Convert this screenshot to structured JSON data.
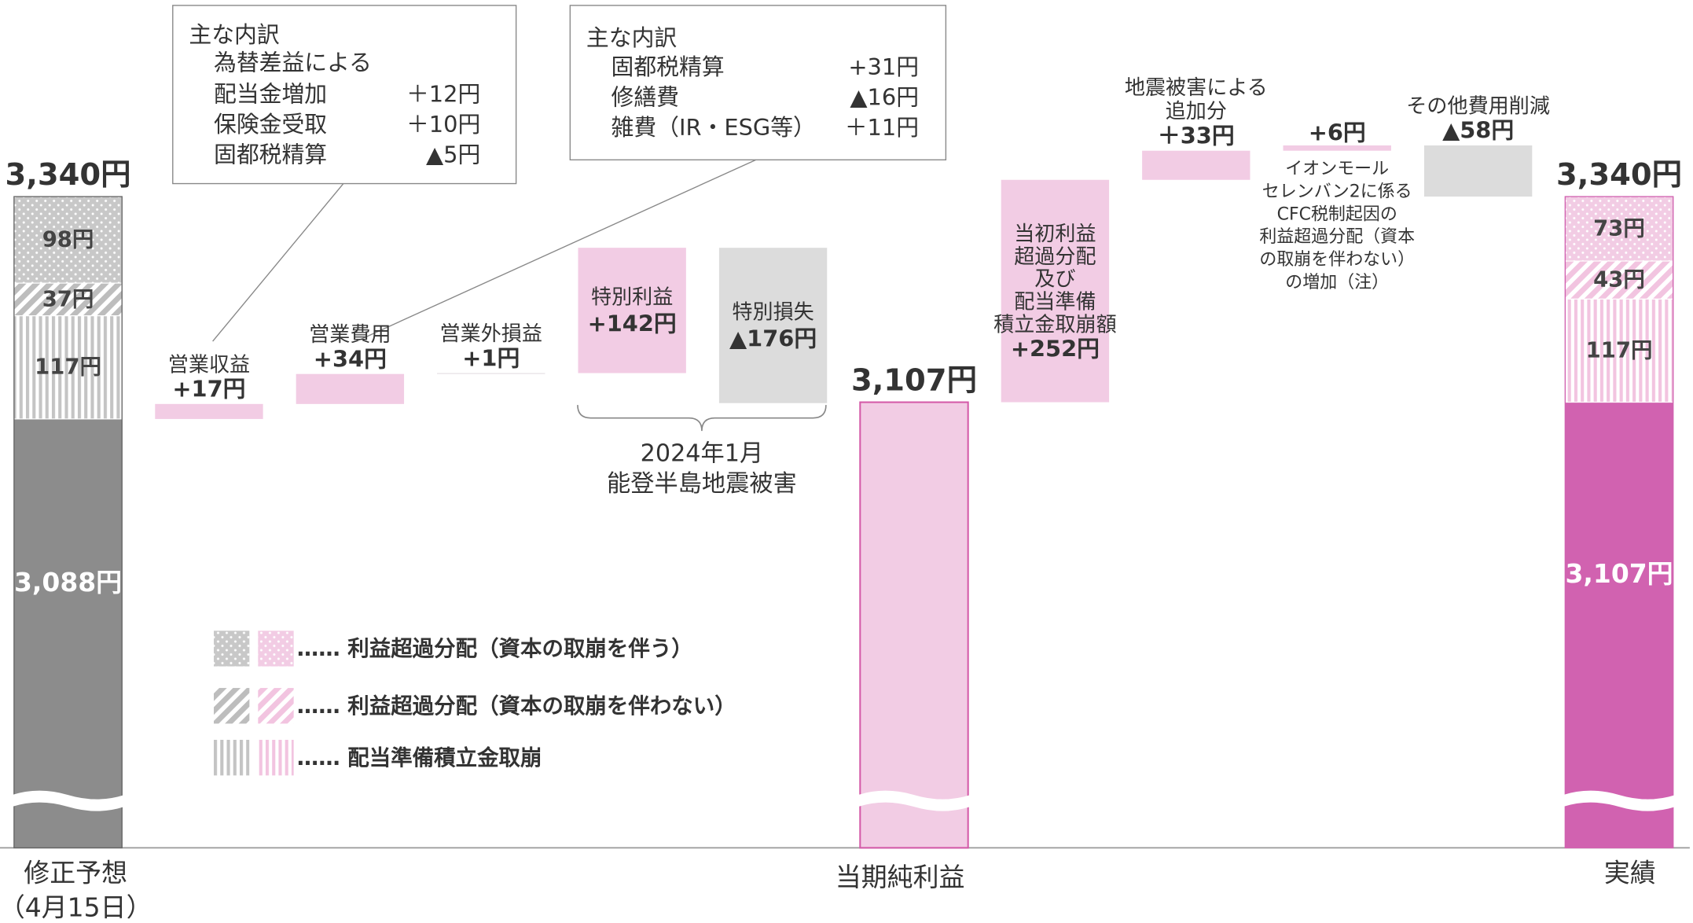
{
  "chart_data": {
    "type": "waterfall",
    "ylim": [
      2650,
      3500
    ],
    "bars": [
      {
        "kind": "total",
        "category": [
          "修正予想",
          "（4月15日）"
        ],
        "value": 3340,
        "value_label": "3,340円",
        "segments": [
          {
            "value": 3088,
            "label": "3,088円",
            "pattern": "solid",
            "color": "#8c8c8c"
          },
          {
            "value": 117,
            "label": "117円",
            "pattern": "stripes",
            "color": "#c4c4c4"
          },
          {
            "value": 37,
            "label": "37円",
            "pattern": "hatch",
            "color": "#bdbdbd"
          },
          {
            "value": 98,
            "label": "98円",
            "pattern": "dots",
            "color": "#c8c8c8"
          }
        ]
      },
      {
        "kind": "step",
        "name": [
          "営業収益"
        ],
        "value": 17,
        "value_label": "+17円",
        "color": "#f2cce4"
      },
      {
        "kind": "step",
        "name": [
          "営業費用"
        ],
        "value": 34,
        "value_label": "+34円",
        "color": "#f2cce4"
      },
      {
        "kind": "step",
        "name": [
          "営業外損益"
        ],
        "value": 1,
        "value_label": "+1円",
        "color": "#e4dde2"
      },
      {
        "kind": "step",
        "name": [
          "特別利益"
        ],
        "value": 142,
        "value_label": "+142円",
        "color": "#f2cce4"
      },
      {
        "kind": "step",
        "name": [
          "特別損失"
        ],
        "value": -176,
        "value_label": "▲176円",
        "color": "#dcdcdc"
      },
      {
        "kind": "total",
        "category": [
          "当期純利益"
        ],
        "value": 3107,
        "value_label": "3,107円",
        "color": "#f2cce4",
        "edge_color": "#d45aa8"
      },
      {
        "kind": "step",
        "name": [
          "当初利益",
          "超過分配",
          "及び",
          "配当準備",
          "積立金取崩額"
        ],
        "value": 252,
        "value_label": "+252円",
        "color": "#f2cce4"
      },
      {
        "kind": "step",
        "name": [
          "地震被害による",
          "追加分"
        ],
        "value": 33,
        "value_label": "＋33円",
        "color": "#f2cce4"
      },
      {
        "kind": "step",
        "name": [
          "イオンモール",
          "セレンバン2に係る",
          "CFC税制起因の",
          "利益超過分配（資本",
          "の取崩を伴わない）",
          "の増加（注）"
        ],
        "value": 6,
        "value_label": "+6円",
        "color": "#f2cce4"
      },
      {
        "kind": "step",
        "name": [
          "その他費用削減"
        ],
        "value": -58,
        "value_label": "▲58円",
        "color": "#dcdcdc"
      },
      {
        "kind": "total",
        "category": [
          "実績"
        ],
        "value": 3340,
        "value_label": "3,340円",
        "segments": [
          {
            "value": 3107,
            "label": "3,107円",
            "pattern": "solid",
            "color": "#d162b0"
          },
          {
            "value": 117,
            "label": "117円",
            "pattern": "stripes",
            "color": "#f2c4e0"
          },
          {
            "value": 43,
            "label": "43円",
            "pattern": "hatch",
            "color": "#f2c4e0"
          },
          {
            "value": 73,
            "label": "73円",
            "pattern": "dots",
            "color": "#f2cce4"
          }
        ]
      }
    ],
    "callouts": [
      {
        "title": "主な内訳",
        "intro": "為替差益による",
        "rows": [
          [
            "配当金増加",
            "＋12円"
          ],
          [
            "保険金受取",
            "＋10円"
          ],
          [
            "固都税精算",
            "▲5円"
          ]
        ]
      },
      {
        "title": "主な内訳",
        "rows": [
          [
            "固都税精算",
            "+31円"
          ],
          [
            "修繕費",
            "▲16円"
          ],
          [
            "雑費（IR・ESG等）",
            "＋11円"
          ]
        ]
      }
    ],
    "brace_label": [
      "2024年1月",
      "能登半島地震被害"
    ],
    "legend": [
      {
        "label": "…… 利益超過分配（資本の取崩を伴う）",
        "pattern": "dots",
        "colors": [
          "#c8c8c8",
          "#f2cce4"
        ]
      },
      {
        "label": "…… 利益超過分配（資本の取崩を伴わない）",
        "pattern": "hatch",
        "colors": [
          "#bdbdbd",
          "#f2c4e0"
        ]
      },
      {
        "label": "…… 配当準備積立金取崩",
        "pattern": "stripes",
        "colors": [
          "#c4c4c4",
          "#f2c4e0"
        ]
      }
    ]
  }
}
